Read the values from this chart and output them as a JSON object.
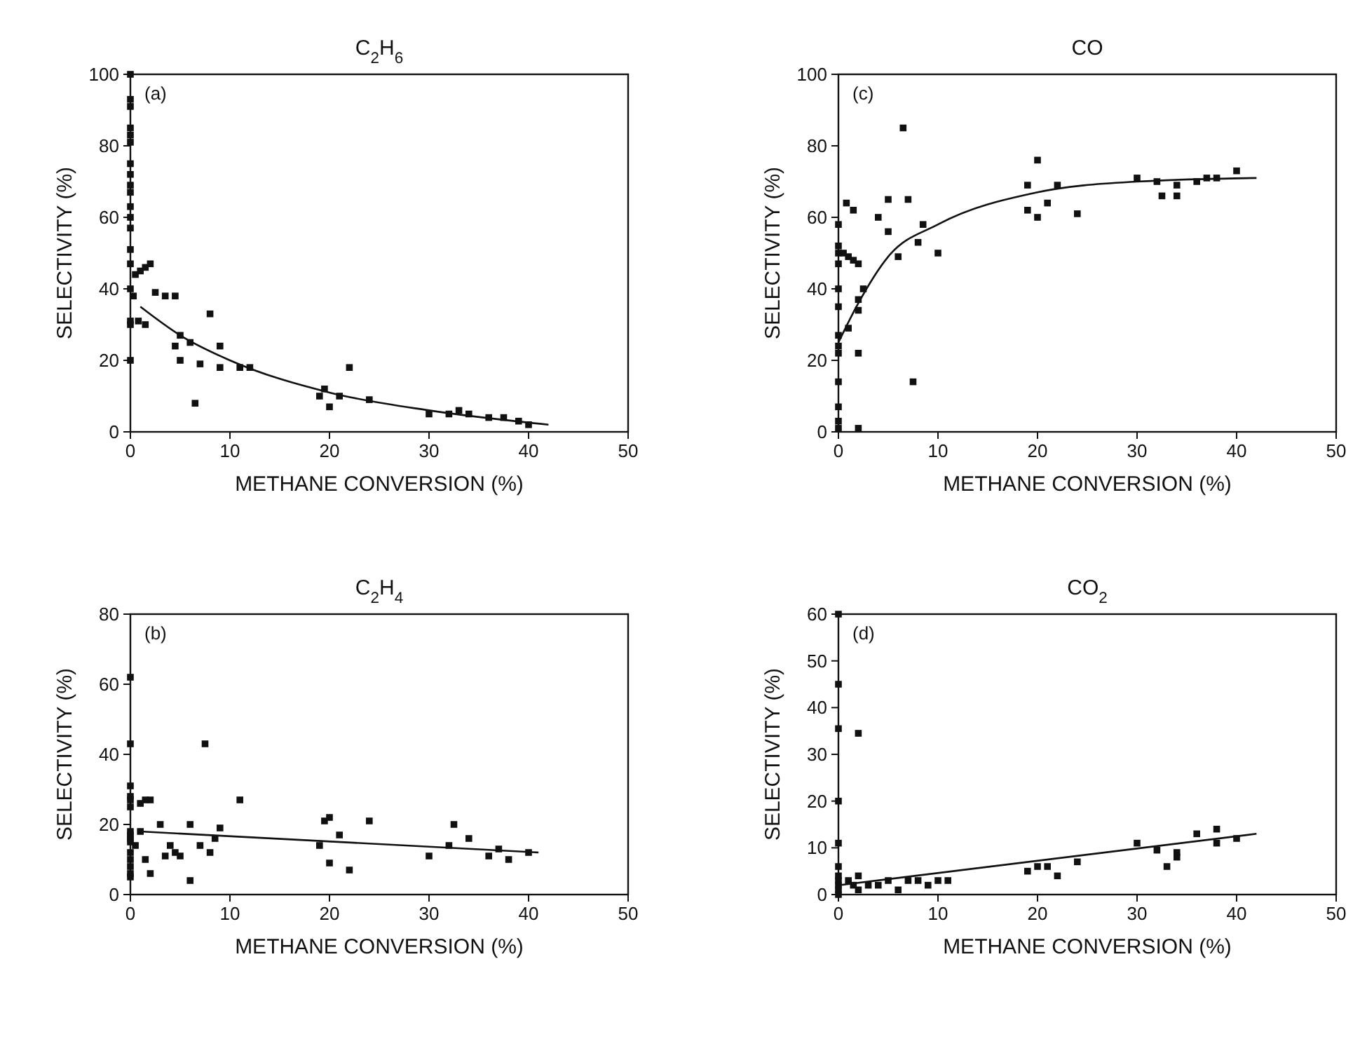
{
  "chart_data": [
    {
      "type": "scatter",
      "title": "C$_{2}$H$_{6}$",
      "xlabel": "METHANE CONVERSION (%)",
      "ylabel": "SELECTIVITY (%)",
      "annotations": [
        "(a)"
      ],
      "xlim": [
        0,
        50
      ],
      "xticks": [
        0,
        10,
        20,
        30,
        40,
        50
      ],
      "ylim": [
        0,
        100
      ],
      "yticks": [
        0,
        20,
        40,
        60,
        80,
        100
      ],
      "marker": "square",
      "series": [
        {
          "color": "#111111",
          "x": [
            0,
            0,
            0,
            0,
            0,
            0,
            0,
            0,
            0,
            0,
            0,
            0,
            0,
            0,
            0,
            0,
            0,
            0,
            0,
            0.5,
            1,
            1.5,
            2,
            0.3,
            0.8,
            1.5,
            2.5,
            3.5,
            4.5,
            5,
            4.5,
            6,
            5,
            7,
            8,
            9,
            6.5,
            9,
            11,
            12,
            19,
            19.5,
            20,
            21,
            22,
            24,
            30,
            32,
            33,
            34,
            36,
            37.5,
            39,
            40
          ],
          "values": [
            100,
            93,
            91,
            85,
            83,
            81,
            75,
            72,
            69,
            67,
            63,
            60,
            57,
            51,
            47,
            40,
            31,
            30,
            20,
            44,
            45,
            46,
            47,
            38,
            31,
            30,
            39,
            38,
            38,
            27,
            24,
            25,
            20,
            19,
            33,
            24,
            8,
            18,
            18,
            18,
            10,
            12,
            7,
            10,
            18,
            9,
            5,
            5,
            6,
            5,
            4,
            4,
            3,
            2
          ]
        },
        {
          "type": "line",
          "color": "#111111",
          "marker": "none",
          "x": [
            1,
            5,
            10,
            20,
            30,
            42
          ],
          "values": [
            35,
            27,
            20,
            11,
            6,
            2
          ]
        }
      ]
    },
    {
      "type": "scatter",
      "title": "CO",
      "xlabel": "METHANE CONVERSION (%)",
      "ylabel": "SELECTIVITY (%)",
      "annotations": [
        "(c)"
      ],
      "xlim": [
        0,
        50
      ],
      "xticks": [
        0,
        10,
        20,
        30,
        40,
        50
      ],
      "ylim": [
        0,
        100
      ],
      "yticks": [
        0,
        20,
        40,
        60,
        80,
        100
      ],
      "marker": "square",
      "series": [
        {
          "color": "#111111",
          "x": [
            0,
            0,
            0,
            0,
            0,
            0,
            0,
            0,
            0,
            0,
            0,
            0,
            0,
            0.8,
            1.5,
            0.5,
            1,
            1.5,
            2,
            2,
            1,
            2,
            2.5,
            2,
            2,
            4,
            5,
            5,
            6.5,
            6,
            7,
            7.5,
            8,
            8.5,
            10,
            19,
            19,
            20,
            20,
            21,
            22,
            24,
            30,
            32,
            32.5,
            34,
            34,
            36,
            37,
            38,
            40
          ],
          "values": [
            58,
            52,
            50,
            47,
            40,
            35,
            27,
            24,
            22,
            14,
            7,
            3,
            1,
            64,
            62,
            50,
            49,
            48,
            47,
            37,
            29,
            34,
            40,
            22,
            1,
            60,
            56,
            65,
            85,
            49,
            65,
            14,
            53,
            58,
            50,
            69,
            62,
            76,
            60,
            64,
            69,
            61,
            71,
            70,
            66,
            69,
            66,
            70,
            71,
            71,
            73
          ]
        },
        {
          "type": "line",
          "color": "#111111",
          "marker": "none",
          "x": [
            0,
            2,
            5,
            10,
            20,
            30,
            42
          ],
          "values": [
            25,
            36,
            49,
            58,
            67,
            70,
            71
          ]
        }
      ]
    },
    {
      "type": "scatter",
      "title": "C$_{2}$H$_{4}$",
      "xlabel": "METHANE CONVERSION (%)",
      "ylabel": "SELECTIVITY (%)",
      "annotations": [
        "(b)"
      ],
      "xlim": [
        0,
        50
      ],
      "xticks": [
        0,
        10,
        20,
        30,
        40,
        50
      ],
      "ylim": [
        0,
        80
      ],
      "yticks": [
        0,
        20,
        40,
        60,
        80
      ],
      "marker": "square",
      "series": [
        {
          "color": "#111111",
          "x": [
            0,
            0,
            0,
            0,
            0,
            0,
            0,
            0,
            0,
            0,
            0,
            0,
            0,
            0,
            0,
            1,
            1.5,
            2,
            1,
            0.5,
            2,
            1.5,
            3,
            4,
            3.5,
            4.5,
            6,
            7,
            7.5,
            8,
            8.5,
            9,
            11,
            5,
            6,
            19,
            19.5,
            20,
            21,
            20,
            22,
            24,
            30,
            32,
            32.5,
            34,
            36,
            37,
            38,
            40
          ],
          "values": [
            62,
            43,
            31,
            28,
            27,
            25,
            18,
            17,
            16,
            15,
            12,
            10,
            8,
            6,
            5,
            26,
            27,
            27,
            18,
            14,
            6,
            10,
            20,
            14,
            11,
            12,
            20,
            14,
            43,
            12,
            16,
            19,
            27,
            11,
            4,
            14,
            21,
            22,
            17,
            9,
            7,
            21,
            11,
            14,
            20,
            16,
            11,
            13,
            10,
            12
          ]
        },
        {
          "type": "line",
          "color": "#111111",
          "marker": "none",
          "x": [
            1,
            41
          ],
          "values": [
            18,
            12
          ]
        }
      ]
    },
    {
      "type": "scatter",
      "title": "CO$_{2}$",
      "xlabel": "METHANE CONVERSION (%)",
      "ylabel": "SELECTIVITY (%)",
      "annotations": [
        "(d)"
      ],
      "xlim": [
        0,
        50
      ],
      "xticks": [
        0,
        10,
        20,
        30,
        40,
        50
      ],
      "ylim": [
        0,
        60
      ],
      "yticks": [
        0,
        10,
        20,
        30,
        40,
        50,
        60
      ],
      "marker": "square",
      "series": [
        {
          "color": "#111111",
          "x": [
            0,
            0,
            0,
            0,
            0,
            0,
            0,
            0,
            0,
            0,
            0,
            2,
            1,
            1.5,
            2,
            2,
            3,
            4,
            5,
            6,
            7,
            8,
            9,
            10,
            11,
            19,
            20,
            21,
            22,
            24,
            30,
            32,
            33,
            34,
            34,
            36,
            38,
            38,
            40
          ],
          "values": [
            60,
            45,
            35.5,
            20,
            11,
            6,
            4,
            3,
            2,
            1,
            0,
            34.5,
            3,
            2,
            1,
            4,
            2,
            2,
            3,
            1,
            3,
            3,
            2,
            3,
            3,
            5,
            6,
            6,
            4,
            7,
            11,
            9.5,
            6,
            9,
            8,
            13,
            14,
            11,
            12
          ]
        },
        {
          "type": "line",
          "color": "#111111",
          "marker": "none",
          "x": [
            0,
            42
          ],
          "values": [
            2,
            13
          ]
        }
      ]
    }
  ]
}
